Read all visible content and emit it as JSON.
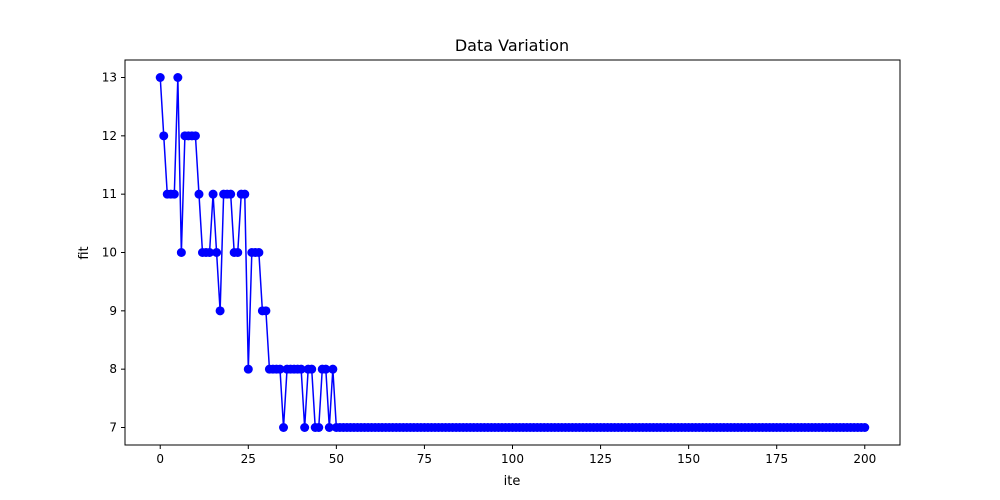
{
  "chart_data": {
    "type": "line",
    "title": "Data Variation",
    "xlabel": "ite",
    "ylabel": "fit",
    "xlim": [
      -10,
      210
    ],
    "ylim": [
      6.7,
      13.3
    ],
    "xticks": [
      0,
      25,
      50,
      75,
      100,
      125,
      150,
      175,
      200
    ],
    "yticks": [
      7,
      8,
      9,
      10,
      11,
      12,
      13
    ],
    "grid": false,
    "marker": "circle",
    "color": "#0000ff",
    "series": [
      {
        "name": "fit",
        "x": [
          0,
          1,
          2,
          3,
          4,
          5,
          6,
          7,
          8,
          9,
          10,
          11,
          12,
          13,
          14,
          15,
          16,
          17,
          18,
          19,
          20,
          21,
          22,
          23,
          24,
          25,
          26,
          27,
          28,
          29,
          30,
          31,
          32,
          33,
          34,
          35,
          36,
          37,
          38,
          39,
          40,
          41,
          42,
          43,
          44,
          45,
          46,
          47,
          48,
          49,
          50,
          51,
          52,
          53,
          54,
          55,
          56,
          57,
          58,
          59,
          60,
          61,
          62,
          63,
          64,
          65,
          66,
          67,
          68,
          69,
          70,
          71,
          72,
          73,
          74,
          75,
          76,
          77,
          78,
          79,
          80,
          81,
          82,
          83,
          84,
          85,
          86,
          87,
          88,
          89,
          90,
          91,
          92,
          93,
          94,
          95,
          96,
          97,
          98,
          99,
          100,
          101,
          102,
          103,
          104,
          105,
          106,
          107,
          108,
          109,
          110,
          111,
          112,
          113,
          114,
          115,
          116,
          117,
          118,
          119,
          120,
          121,
          122,
          123,
          124,
          125,
          126,
          127,
          128,
          129,
          130,
          131,
          132,
          133,
          134,
          135,
          136,
          137,
          138,
          139,
          140,
          141,
          142,
          143,
          144,
          145,
          146,
          147,
          148,
          149,
          150,
          151,
          152,
          153,
          154,
          155,
          156,
          157,
          158,
          159,
          160,
          161,
          162,
          163,
          164,
          165,
          166,
          167,
          168,
          169,
          170,
          171,
          172,
          173,
          174,
          175,
          176,
          177,
          178,
          179,
          180,
          181,
          182,
          183,
          184,
          185,
          186,
          187,
          188,
          189,
          190,
          191,
          192,
          193,
          194,
          195,
          196,
          197,
          198,
          199,
          200
        ],
        "y": [
          13,
          12,
          11,
          11,
          11,
          13,
          10,
          12,
          12,
          12,
          12,
          11,
          10,
          10,
          10,
          11,
          10,
          9,
          11,
          11,
          11,
          10,
          10,
          11,
          11,
          8,
          10,
          10,
          10,
          9,
          9,
          8,
          8,
          8,
          8,
          7,
          8,
          8,
          8,
          8,
          8,
          7,
          8,
          8,
          7,
          7,
          8,
          8,
          7,
          8,
          7,
          7,
          7,
          7,
          7,
          7,
          7,
          7,
          7,
          7,
          7,
          7,
          7,
          7,
          7,
          7,
          7,
          7,
          7,
          7,
          7,
          7,
          7,
          7,
          7,
          7,
          7,
          7,
          7,
          7,
          7,
          7,
          7,
          7,
          7,
          7,
          7,
          7,
          7,
          7,
          7,
          7,
          7,
          7,
          7,
          7,
          7,
          7,
          7,
          7,
          7,
          7,
          7,
          7,
          7,
          7,
          7,
          7,
          7,
          7,
          7,
          7,
          7,
          7,
          7,
          7,
          7,
          7,
          7,
          7,
          7,
          7,
          7,
          7,
          7,
          7,
          7,
          7,
          7,
          7,
          7,
          7,
          7,
          7,
          7,
          7,
          7,
          7,
          7,
          7,
          7,
          7,
          7,
          7,
          7,
          7,
          7,
          7,
          7,
          7,
          7,
          7,
          7,
          7,
          7,
          7,
          7,
          7,
          7,
          7,
          7,
          7,
          7,
          7,
          7,
          7,
          7,
          7,
          7,
          7,
          7,
          7,
          7,
          7,
          7,
          7,
          7,
          7,
          7,
          7,
          7,
          7,
          7,
          7,
          7,
          7,
          7,
          7,
          7,
          7,
          7,
          7,
          7,
          7,
          7,
          7,
          7,
          7,
          7,
          7,
          7
        ]
      }
    ]
  }
}
